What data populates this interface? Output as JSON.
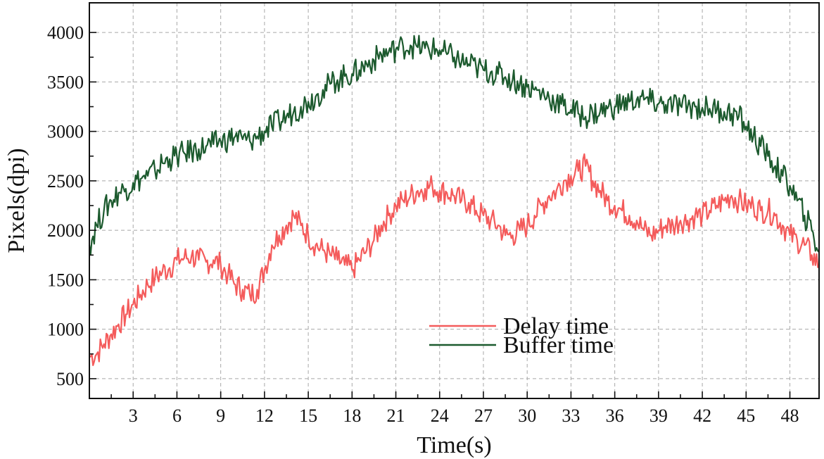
{
  "chart_data": {
    "type": "line",
    "title": "",
    "xlabel": "Time(s)",
    "ylabel": "Pixels(dpi)",
    "xlim": [
      0,
      50
    ],
    "ylim": [
      300,
      4300
    ],
    "xticks": [
      3,
      6,
      9,
      12,
      15,
      18,
      21,
      24,
      27,
      30,
      33,
      36,
      39,
      42,
      45,
      48
    ],
    "yticks": [
      500,
      1000,
      1500,
      2000,
      2500,
      3000,
      3500,
      4000
    ],
    "grid": true,
    "legend": {
      "position": "lower-center"
    },
    "series": [
      {
        "name": "Delay time",
        "color": "#f45b5b",
        "x": [
          0,
          0.5,
          1,
          1.5,
          2,
          2.5,
          3,
          3.5,
          4,
          4.5,
          5,
          5.5,
          6,
          6.5,
          7,
          7.5,
          8,
          8.5,
          9,
          9.5,
          10,
          10.5,
          11,
          11.5,
          12,
          12.5,
          13,
          13.5,
          14,
          14.5,
          15,
          15.5,
          16,
          16.5,
          17,
          17.5,
          18,
          18.5,
          19,
          19.5,
          20,
          20.5,
          21,
          21.5,
          22,
          22.5,
          23,
          23.5,
          24,
          24.5,
          25,
          25.5,
          26,
          26.5,
          27,
          27.5,
          28,
          28.5,
          29,
          29.5,
          30,
          30.5,
          31,
          31.5,
          32,
          32.5,
          33,
          33.5,
          34,
          34.5,
          35,
          35.5,
          36,
          36.5,
          37,
          37.5,
          38,
          38.5,
          39,
          39.5,
          40,
          40.5,
          41,
          41.5,
          42,
          42.5,
          43,
          43.5,
          44,
          44.5,
          45,
          45.5,
          46,
          46.5,
          47,
          47.5,
          48,
          48.5,
          49,
          49.5,
          50
        ],
        "values": [
          720,
          750,
          850,
          950,
          1050,
          1150,
          1250,
          1350,
          1450,
          1520,
          1580,
          1620,
          1700,
          1720,
          1740,
          1700,
          1680,
          1700,
          1650,
          1550,
          1450,
          1400,
          1350,
          1400,
          1600,
          1850,
          1950,
          2050,
          2150,
          2050,
          1950,
          1850,
          1800,
          1750,
          1700,
          1650,
          1600,
          1700,
          1800,
          1900,
          2050,
          2150,
          2250,
          2300,
          2350,
          2400,
          2420,
          2450,
          2400,
          2380,
          2350,
          2300,
          2280,
          2200,
          2150,
          2100,
          2050,
          1950,
          1950,
          2000,
          2050,
          2150,
          2250,
          2350,
          2400,
          2500,
          2550,
          2600,
          2650,
          2500,
          2400,
          2300,
          2250,
          2200,
          2150,
          2100,
          2000,
          1950,
          2000,
          2050,
          2050,
          2100,
          2100,
          2150,
          2150,
          2200,
          2250,
          2300,
          2350,
          2300,
          2250,
          2250,
          2200,
          2200,
          2150,
          2050,
          1950,
          1900,
          1850,
          1750,
          1650
        ]
      },
      {
        "name": "Buffer time",
        "color": "#1c5a2e",
        "x": [
          0,
          0.5,
          1,
          1.5,
          2,
          2.5,
          3,
          3.5,
          4,
          4.5,
          5,
          5.5,
          6,
          6.5,
          7,
          7.5,
          8,
          8.5,
          9,
          9.5,
          10,
          10.5,
          11,
          11.5,
          12,
          12.5,
          13,
          13.5,
          14,
          14.5,
          15,
          15.5,
          16,
          16.5,
          17,
          17.5,
          18,
          18.5,
          19,
          19.5,
          20,
          20.5,
          21,
          21.5,
          22,
          22.5,
          23,
          23.5,
          24,
          24.5,
          25,
          25.5,
          26,
          26.5,
          27,
          27.5,
          28,
          28.5,
          29,
          29.5,
          30,
          30.5,
          31,
          31.5,
          32,
          32.5,
          33,
          33.5,
          34,
          34.5,
          35,
          35.5,
          36,
          36.5,
          37,
          37.5,
          38,
          38.5,
          39,
          39.5,
          40,
          40.5,
          41,
          41.5,
          42,
          42.5,
          43,
          43.5,
          44,
          44.5,
          45,
          45.5,
          46,
          46.5,
          47,
          47.5,
          48,
          48.5,
          49,
          49.5,
          50
        ],
        "values": [
          1850,
          2050,
          2200,
          2300,
          2380,
          2420,
          2480,
          2520,
          2550,
          2600,
          2680,
          2720,
          2750,
          2780,
          2800,
          2820,
          2850,
          2870,
          2900,
          2920,
          2950,
          2920,
          2900,
          2950,
          3000,
          3050,
          3100,
          3150,
          3200,
          3250,
          3300,
          3350,
          3420,
          3480,
          3520,
          3560,
          3580,
          3620,
          3680,
          3720,
          3780,
          3800,
          3830,
          3860,
          3870,
          3850,
          3840,
          3830,
          3820,
          3780,
          3750,
          3700,
          3680,
          3650,
          3620,
          3600,
          3580,
          3550,
          3520,
          3480,
          3450,
          3420,
          3380,
          3340,
          3300,
          3260,
          3220,
          3180,
          3150,
          3180,
          3200,
          3230,
          3250,
          3280,
          3300,
          3320,
          3320,
          3300,
          3280,
          3270,
          3260,
          3260,
          3250,
          3250,
          3240,
          3230,
          3220,
          3200,
          3180,
          3150,
          3050,
          2950,
          2850,
          2750,
          2650,
          2550,
          2450,
          2300,
          2150,
          2000,
          1780
        ]
      }
    ]
  }
}
